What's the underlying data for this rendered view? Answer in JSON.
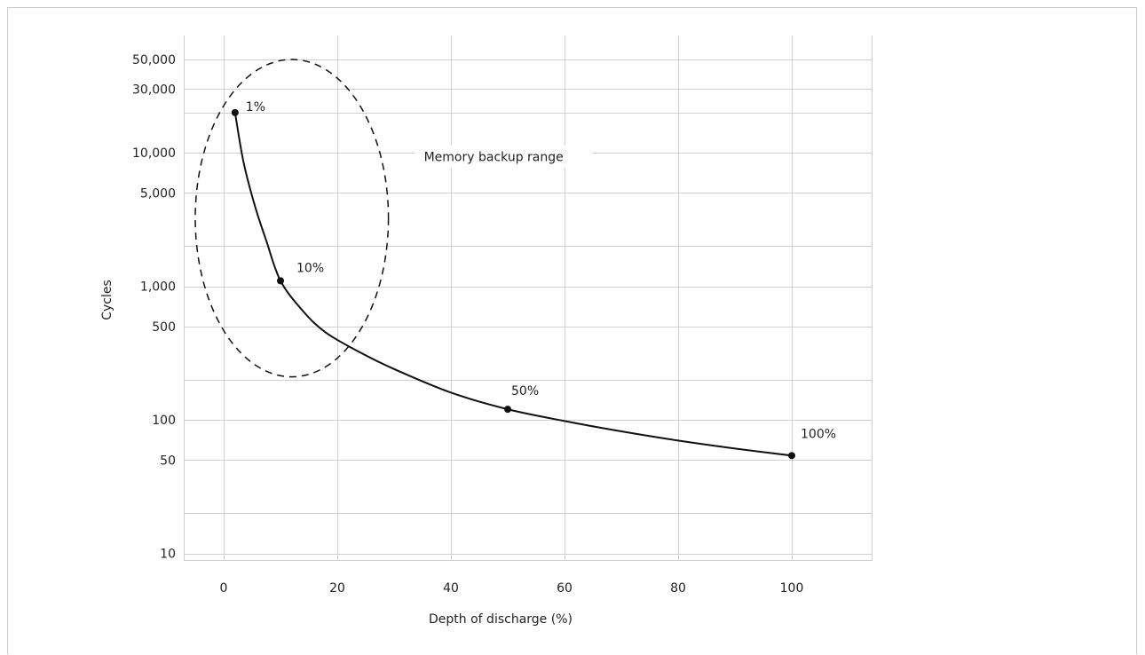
{
  "chart_data": {
    "type": "line",
    "xlabel": "Depth of discharge (%)",
    "ylabel": "Cycles",
    "x_scale": "linear",
    "y_scale": "log",
    "xlim": [
      -7,
      112
    ],
    "ylim": [
      10,
      70000
    ],
    "x_ticks": [
      0,
      20,
      40,
      60,
      80,
      100
    ],
    "x_tick_labels": [
      "0",
      "20",
      "40",
      "60",
      "80",
      "100"
    ],
    "y_ticks": [
      10,
      50,
      100,
      500,
      1000,
      5000,
      10000,
      30000,
      50000
    ],
    "y_tick_labels": [
      "10",
      "50",
      "100",
      "500",
      "1,000",
      "5,000",
      "10,000",
      "30,000",
      "50,000"
    ],
    "grid": true,
    "series": [
      {
        "points": [
          {
            "x": 2,
            "y": 20000,
            "label": "1%"
          },
          {
            "x": 10,
            "y": 1100,
            "label": "10%"
          },
          {
            "x": 50,
            "y": 120,
            "label": "50%"
          },
          {
            "x": 100,
            "y": 54,
            "label": "100%"
          }
        ],
        "curve": [
          {
            "x": 2,
            "y": 20000
          },
          {
            "x": 3.5,
            "y": 8500
          },
          {
            "x": 5.5,
            "y": 4000
          },
          {
            "x": 7.5,
            "y": 2200
          },
          {
            "x": 10,
            "y": 1100
          },
          {
            "x": 14,
            "y": 650
          },
          {
            "x": 18,
            "y": 450
          },
          {
            "x": 24,
            "y": 320
          },
          {
            "x": 30,
            "y": 240
          },
          {
            "x": 40,
            "y": 160
          },
          {
            "x": 50,
            "y": 120
          },
          {
            "x": 60,
            "y": 98
          },
          {
            "x": 70,
            "y": 82
          },
          {
            "x": 80,
            "y": 70
          },
          {
            "x": 90,
            "y": 61
          },
          {
            "x": 100,
            "y": 54
          }
        ]
      }
    ],
    "annotation": {
      "text": "Memory backup range",
      "region": {
        "x_min": -5,
        "x_max": 29,
        "y_min": 210,
        "y_max": 50000
      }
    }
  }
}
